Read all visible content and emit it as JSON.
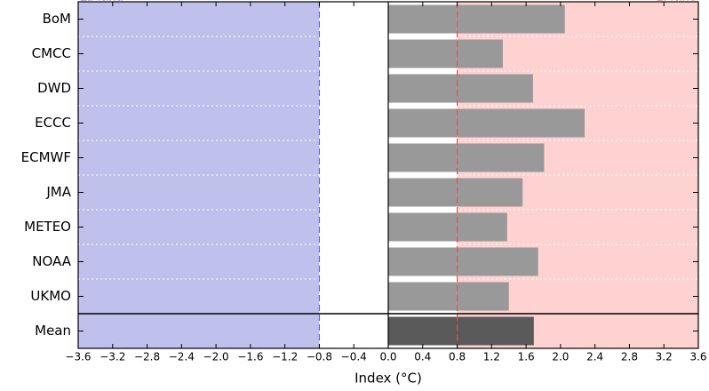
{
  "chart_data": {
    "type": "barh",
    "categories": [
      "BoM",
      "CMCC",
      "DWD",
      "ECCC",
      "ECMWF",
      "JMA",
      "METEO",
      "NOAA",
      "UKMO",
      "Mean"
    ],
    "values": [
      2.05,
      1.33,
      1.68,
      2.28,
      1.81,
      1.56,
      1.38,
      1.74,
      1.4,
      1.69
    ],
    "colors": [
      "#999999",
      "#999999",
      "#999999",
      "#999999",
      "#999999",
      "#999999",
      "#999999",
      "#999999",
      "#999999",
      "#5a5a5a"
    ],
    "xlabel": "Index (°C)",
    "xlim": [
      -3.6,
      3.6
    ],
    "xticks": [
      {
        "value": -3.6,
        "label": "−3.6"
      },
      {
        "value": -3.2,
        "label": "−3.2"
      },
      {
        "value": -2.8,
        "label": "−2.8"
      },
      {
        "value": -2.4,
        "label": "−2.4"
      },
      {
        "value": -2.0,
        "label": "−2.0"
      },
      {
        "value": -1.6,
        "label": "−1.6"
      },
      {
        "value": -1.2,
        "label": "−1.2"
      },
      {
        "value": -0.8,
        "label": "−0.8"
      },
      {
        "value": -0.4,
        "label": "−0.4"
      },
      {
        "value": 0,
        "label": "0.0"
      },
      {
        "value": 0.4,
        "label": "0.4"
      },
      {
        "value": 0.8,
        "label": "0.8"
      },
      {
        "value": 1.2,
        "label": "1.2"
      },
      {
        "value": 1.6,
        "label": "1.6"
      },
      {
        "value": 2.0,
        "label": "2.0"
      },
      {
        "value": 2.4,
        "label": "2.4"
      },
      {
        "value": 2.8,
        "label": "2.8"
      },
      {
        "value": 3.2,
        "label": "3.2"
      },
      {
        "value": 3.6,
        "label": "3.6"
      }
    ],
    "thresholds": [
      {
        "label": "La Niña",
        "value": -0.8,
        "color": "#6666cc",
        "fill": "#c0c0ec"
      },
      {
        "label": "El Niño",
        "value": 0.8,
        "color": "#dd5555",
        "fill": "#ffd2d2"
      }
    ]
  }
}
